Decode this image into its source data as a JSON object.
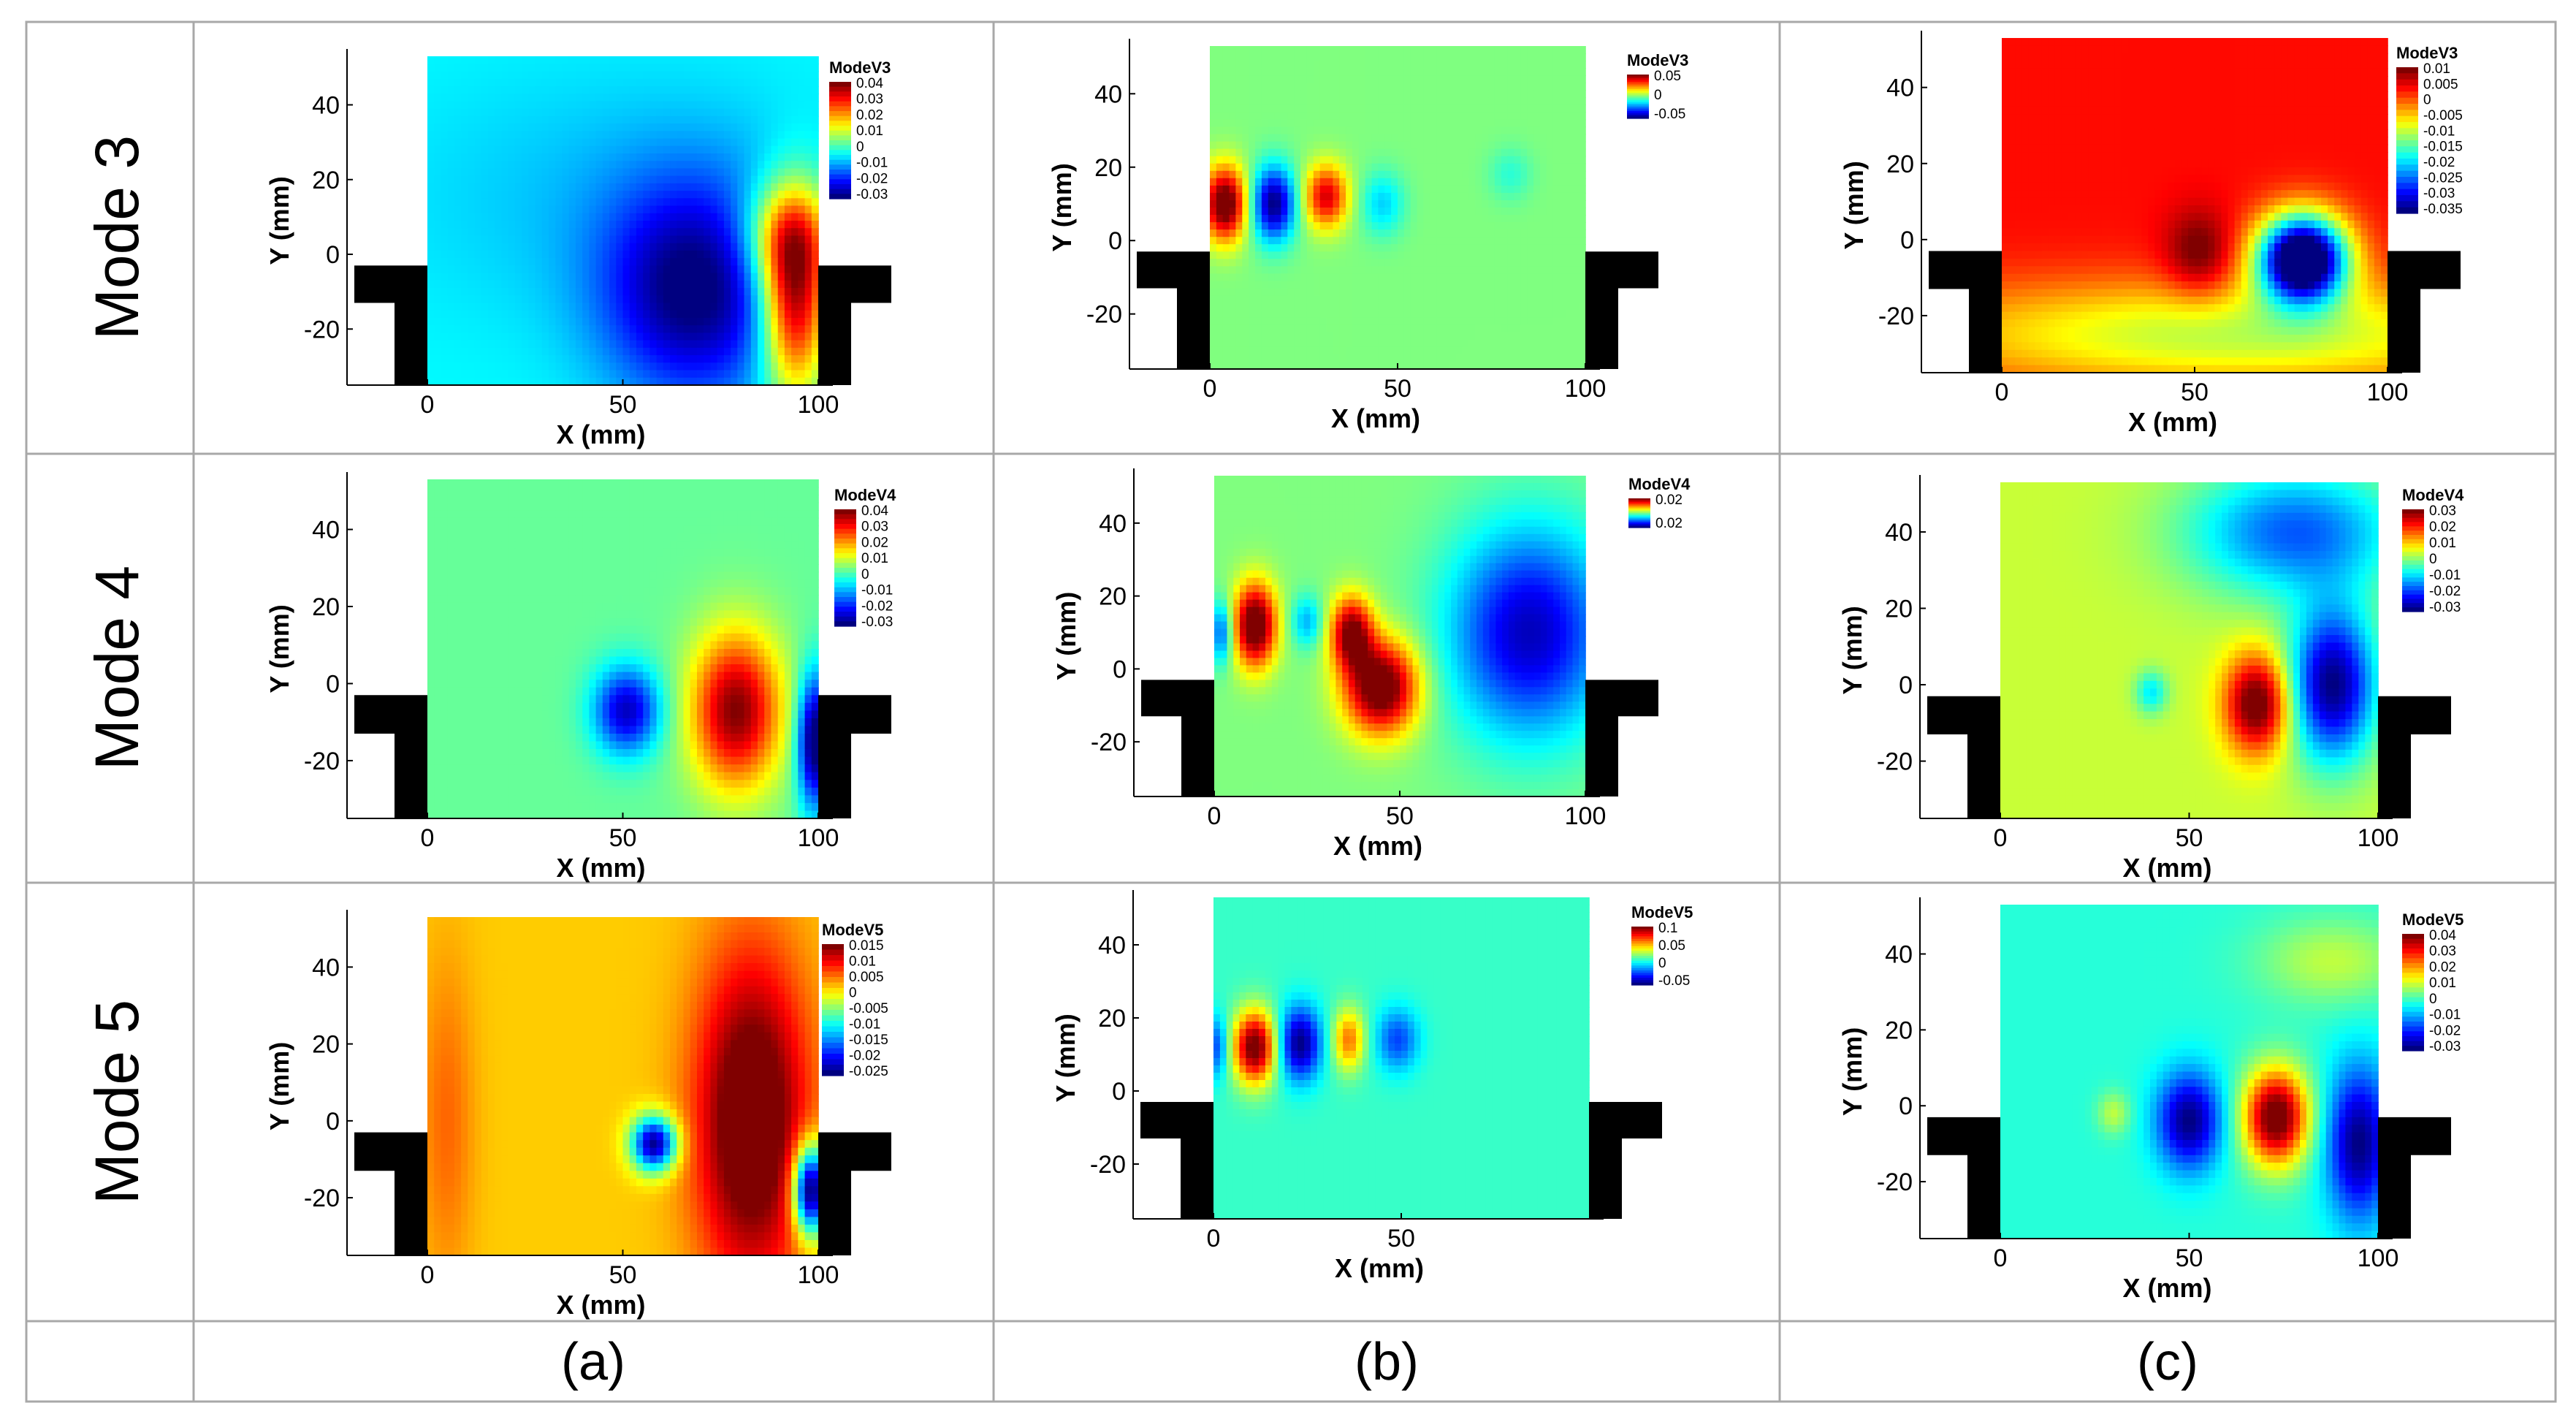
{
  "row_labels": [
    "Mode 3",
    "Mode 4",
    "Mode 5"
  ],
  "column_labels": [
    "(a)",
    "(b)",
    "(c)"
  ],
  "chart_data": [
    {
      "type": "heatmap",
      "panel": "a",
      "mode": "Mode 3",
      "xlabel": "X (mm)",
      "ylabel": "Y (mm)",
      "xticks": [
        "0",
        "50",
        "100"
      ],
      "yticks": [
        "40",
        "20",
        "0",
        "-20"
      ],
      "legend": {
        "title": "ModeV3",
        "levels": [
          "0.04",
          "0.03",
          "0.02",
          "0.01",
          "0",
          "-0.01",
          "-0.02",
          "-0.03"
        ]
      },
      "background_value": -0.005,
      "value_range": [
        -0.035,
        0.045
      ],
      "blobs": [
        {
          "x": 68,
          "y": -10,
          "sx": 16,
          "sy": 20,
          "v": -0.035
        },
        {
          "x": 50,
          "y": 15,
          "sx": 40,
          "sy": 25,
          "v": -0.01
        },
        {
          "x": 94,
          "y": -12,
          "sx": 6,
          "sy": 18,
          "v": 0.045
        },
        {
          "x": 92,
          "y": 5,
          "sx": 8,
          "sy": 10,
          "v": 0.02
        }
      ]
    },
    {
      "type": "heatmap",
      "panel": "b",
      "mode": "Mode 3",
      "xlabel": "X (mm)",
      "ylabel": "Y (mm)",
      "xticks": [
        "0",
        "50",
        "100"
      ],
      "yticks": [
        "40",
        "20",
        "0",
        "-20"
      ],
      "legend": {
        "title": "ModeV3",
        "levels": [
          "0.05",
          "0",
          "-0.05"
        ]
      },
      "background_value": 0,
      "value_range": [
        -0.06,
        0.06
      ],
      "blobs": [
        {
          "x": 4,
          "y": 10,
          "sx": 4,
          "sy": 7,
          "v": 0.07
        },
        {
          "x": 17,
          "y": 10,
          "sx": 4,
          "sy": 7,
          "v": -0.06
        },
        {
          "x": 31,
          "y": 12,
          "sx": 4,
          "sy": 6,
          "v": 0.05
        },
        {
          "x": 46,
          "y": 10,
          "sx": 4,
          "sy": 6,
          "v": -0.02
        },
        {
          "x": 80,
          "y": 18,
          "sx": 4,
          "sy": 5,
          "v": -0.01
        }
      ]
    },
    {
      "type": "heatmap",
      "panel": "c",
      "mode": "Mode 3",
      "xlabel": "X (mm)",
      "ylabel": "Y (mm)",
      "xticks": [
        "0",
        "50",
        "100"
      ],
      "yticks": [
        "40",
        "20",
        "0",
        "-20"
      ],
      "legend": {
        "title": "ModeV3",
        "levels": [
          "0.01",
          "0.005",
          "0",
          "-0.005",
          "-0.01",
          "-0.015",
          "-0.02",
          "-0.025",
          "-0.03",
          "-0.035"
        ]
      },
      "background_value": 0.004,
      "value_range": [
        -0.035,
        0.01
      ],
      "blobs": [
        {
          "x": 51,
          "y": -4,
          "sx": 6,
          "sy": 8,
          "v": 0.012
        },
        {
          "x": 78,
          "y": -5,
          "sx": 8,
          "sy": 8,
          "v": -0.045
        },
        {
          "x": 60,
          "y": -25,
          "sx": 60,
          "sy": 10,
          "v": -0.01
        },
        {
          "x": 30,
          "y": 40,
          "sx": 30,
          "sy": 12,
          "v": 0.004
        }
      ]
    },
    {
      "type": "heatmap",
      "panel": "a",
      "mode": "Mode 4",
      "xlabel": "X (mm)",
      "ylabel": "Y (mm)",
      "xticks": [
        "0",
        "50",
        "100"
      ],
      "yticks": [
        "40",
        "20",
        "0",
        "-20"
      ],
      "legend": {
        "title": "ModeV4",
        "levels": [
          "0.04",
          "0.03",
          "0.02",
          "0.01",
          "0",
          "-0.01",
          "-0.02",
          "-0.03"
        ]
      },
      "background_value": 0.003,
      "value_range": [
        -0.035,
        0.045
      ],
      "blobs": [
        {
          "x": 79,
          "y": -7,
          "sx": 8,
          "sy": 14,
          "v": 0.045
        },
        {
          "x": 51,
          "y": -7,
          "sx": 6,
          "sy": 8,
          "v": -0.03
        },
        {
          "x": 99,
          "y": -15,
          "sx": 3,
          "sy": 12,
          "v": -0.04
        }
      ]
    },
    {
      "type": "heatmap",
      "panel": "b",
      "mode": "Mode 4",
      "xlabel": "X (mm)",
      "ylabel": "Y (mm)",
      "xticks": [
        "0",
        "50",
        "100"
      ],
      "yticks": [
        "40",
        "20",
        "0",
        "-20"
      ],
      "legend": {
        "title": "ModeV4",
        "levels": [
          "0.02",
          "0.02"
        ]
      },
      "background_value": 0,
      "value_range": [
        -0.025,
        0.025
      ],
      "blobs": [
        {
          "x": 11,
          "y": 12,
          "sx": 4,
          "sy": 8,
          "v": 0.03
        },
        {
          "x": 37,
          "y": 10,
          "sx": 4,
          "sy": 7,
          "v": 0.025
        },
        {
          "x": 45,
          "y": -5,
          "sx": 7,
          "sy": 9,
          "v": 0.03
        },
        {
          "x": 85,
          "y": 10,
          "sx": 15,
          "sy": 20,
          "v": -0.022
        },
        {
          "x": 25,
          "y": 13,
          "sx": 3,
          "sy": 5,
          "v": -0.01
        },
        {
          "x": 2,
          "y": 10,
          "sx": 2,
          "sy": 6,
          "v": -0.015
        }
      ]
    },
    {
      "type": "heatmap",
      "panel": "c",
      "mode": "Mode 4",
      "xlabel": "X (mm)",
      "ylabel": "Y (mm)",
      "xticks": [
        "0",
        "50",
        "100"
      ],
      "yticks": [
        "40",
        "20",
        "0",
        "-20"
      ],
      "legend": {
        "title": "ModeV4",
        "levels": [
          "0.03",
          "0.02",
          "0.01",
          "0",
          "-0.01",
          "-0.02",
          "-0.03"
        ]
      },
      "background_value": 0.005,
      "value_range": [
        -0.035,
        0.035
      ],
      "blobs": [
        {
          "x": 68,
          "y": -5,
          "sx": 6,
          "sy": 9,
          "v": 0.04
        },
        {
          "x": 88,
          "y": 0,
          "sx": 8,
          "sy": 14,
          "v": -0.035
        },
        {
          "x": 78,
          "y": 40,
          "sx": 20,
          "sy": 12,
          "v": -0.02
        },
        {
          "x": 40,
          "y": -2,
          "sx": 3,
          "sy": 4,
          "v": -0.01
        }
      ]
    },
    {
      "type": "heatmap",
      "panel": "a",
      "mode": "Mode 5",
      "xlabel": "X (mm)",
      "ylabel": "Y (mm)",
      "xticks": [
        "0",
        "50",
        "100"
      ],
      "yticks": [
        "40",
        "20",
        "0",
        "-20"
      ],
      "legend": {
        "title": "ModeV5",
        "levels": [
          "0.015",
          "0.01",
          "0.005",
          "0",
          "-0.005",
          "-0.01",
          "-0.015",
          "-0.02",
          "-0.025"
        ]
      },
      "background_value": 0.002,
      "value_range": [
        -0.025,
        0.015
      ],
      "blobs": [
        {
          "x": 83,
          "y": 0,
          "sx": 10,
          "sy": 30,
          "v": 0.02
        },
        {
          "x": 58,
          "y": -6,
          "sx": 4,
          "sy": 5,
          "v": -0.025
        },
        {
          "x": 98,
          "y": -18,
          "sx": 3,
          "sy": 8,
          "v": -0.03
        },
        {
          "x": 5,
          "y": 0,
          "sx": 5,
          "sy": 30,
          "v": 0.006
        }
      ]
    },
    {
      "type": "heatmap",
      "panel": "b",
      "mode": "Mode 5",
      "xlabel": "X (mm)",
      "ylabel": "Y (mm)",
      "xticks": [
        "0",
        "50"
      ],
      "yticks": [
        "40",
        "20",
        "0",
        "-20"
      ],
      "legend": {
        "title": "ModeV5",
        "levels": [
          "0.1",
          "0.05",
          "0",
          "-0.05"
        ]
      },
      "background_value": 0,
      "value_range": [
        -0.09,
        0.12
      ],
      "blobs": [
        {
          "x": 11,
          "y": 12,
          "sx": 4,
          "sy": 7,
          "v": 0.13
        },
        {
          "x": 23,
          "y": 13,
          "sx": 4,
          "sy": 7,
          "v": -0.09
        },
        {
          "x": 36,
          "y": 14,
          "sx": 3,
          "sy": 6,
          "v": 0.07
        },
        {
          "x": 49,
          "y": 14,
          "sx": 4,
          "sy": 6,
          "v": -0.05
        },
        {
          "x": 1,
          "y": 12,
          "sx": 2,
          "sy": 6,
          "v": -0.05
        }
      ]
    },
    {
      "type": "heatmap",
      "panel": "c",
      "mode": "Mode 5",
      "xlabel": "X (mm)",
      "ylabel": "Y (mm)",
      "xticks": [
        "0",
        "50",
        "100"
      ],
      "yticks": [
        "40",
        "20",
        "0",
        "-20"
      ],
      "legend": {
        "title": "ModeV5",
        "levels": [
          "0.04",
          "0.03",
          "0.02",
          "0.01",
          "0",
          "-0.01",
          "-0.02",
          "-0.03"
        ]
      },
      "background_value": -0.002,
      "value_range": [
        -0.035,
        0.045
      ],
      "blobs": [
        {
          "x": 73,
          "y": -3,
          "sx": 6,
          "sy": 9,
          "v": 0.05
        },
        {
          "x": 50,
          "y": -4,
          "sx": 6,
          "sy": 9,
          "v": -0.035
        },
        {
          "x": 95,
          "y": -10,
          "sx": 6,
          "sy": 14,
          "v": -0.035
        },
        {
          "x": 88,
          "y": 38,
          "sx": 14,
          "sy": 8,
          "v": 0.01
        },
        {
          "x": 30,
          "y": -2,
          "sx": 3,
          "sy": 4,
          "v": 0.01
        }
      ]
    }
  ]
}
